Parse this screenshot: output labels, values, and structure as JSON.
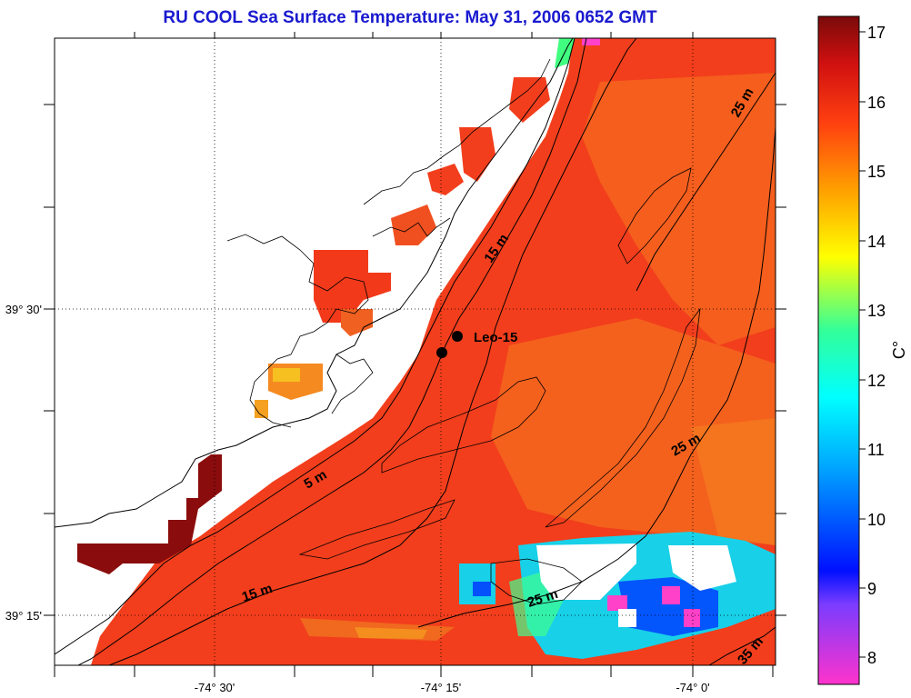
{
  "title": "RU COOL  Sea Surface Temperature:  May 31, 2006 0652 GMT",
  "x_ticks": [
    "-74° 30'",
    "-74° 15'",
    "-74° 0'"
  ],
  "y_ticks": [
    "39° 30'",
    "39° 15'"
  ],
  "colorbar": {
    "unit": "C°",
    "ticks": [
      "17",
      "16",
      "15",
      "14",
      "13",
      "12",
      "11",
      "10",
      "9",
      "8"
    ]
  },
  "contour_labels": [
    "5 m",
    "15 m",
    "15 m",
    "25 m",
    "25 m",
    "25 m",
    "35 m"
  ],
  "station_label": "Leo-15",
  "colors": {
    "title": "#1a1ad0",
    "warm": "#f03c1c",
    "hot": "#7a0a0a",
    "cool": "#00d8ff",
    "cold": "#ff30c8"
  }
}
